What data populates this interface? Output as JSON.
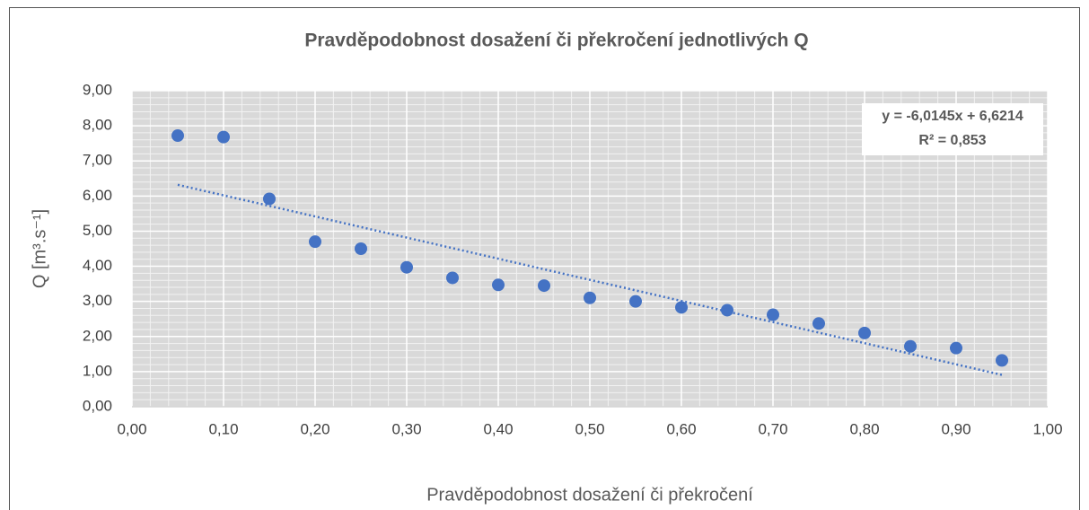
{
  "chart_data": {
    "type": "scatter",
    "title": "Pravděpodobnost dosažení či překročení jednotlivých Q",
    "x_label": "Pravděpodobnost dosažení či překročení",
    "y_label": "Q [m³.s⁻¹]",
    "x": [
      0.05,
      0.1,
      0.15,
      0.2,
      0.25,
      0.3,
      0.35,
      0.4,
      0.45,
      0.5,
      0.55,
      0.6,
      0.65,
      0.7,
      0.75,
      0.8,
      0.85,
      0.9,
      0.95
    ],
    "series": [
      {
        "color": "#4472c4",
        "values": [
          7.72,
          7.68,
          5.92,
          4.7,
          4.5,
          3.97,
          3.67,
          3.47,
          3.45,
          3.1,
          3.0,
          2.83,
          2.75,
          2.62,
          2.37,
          2.1,
          1.72,
          1.67,
          1.32
        ]
      }
    ],
    "trendline": {
      "slope": -6.0145,
      "intercept": 6.6214,
      "equation": "y = -6,0145x + 6,6214",
      "r_squared": "R² = 0,853"
    },
    "xlim": [
      0,
      1
    ],
    "xticks": [
      {
        "value": 0,
        "label": "0,00"
      },
      {
        "value": 0.1,
        "label": "0,10"
      },
      {
        "value": 0.2,
        "label": "0,20"
      },
      {
        "value": 0.3,
        "label": "0,30"
      },
      {
        "value": 0.4,
        "label": "0,40"
      },
      {
        "value": 0.5,
        "label": "0,50"
      },
      {
        "value": 0.6,
        "label": "0,60"
      },
      {
        "value": 0.7,
        "label": "0,70"
      },
      {
        "value": 0.8,
        "label": "0,80"
      },
      {
        "value": 0.9,
        "label": "0,90"
      },
      {
        "value": 1,
        "label": "1,00"
      }
    ],
    "ylim": [
      0,
      9
    ],
    "yticks": [
      {
        "value": 0,
        "label": "0,00"
      },
      {
        "value": 1,
        "label": "1,00"
      },
      {
        "value": 2,
        "label": "2,00"
      },
      {
        "value": 3,
        "label": "3,00"
      },
      {
        "value": 4,
        "label": "4,00"
      },
      {
        "value": 5,
        "label": "5,00"
      },
      {
        "value": 6,
        "label": "6,00"
      },
      {
        "value": 7,
        "label": "7,00"
      },
      {
        "value": 8,
        "label": "8,00"
      },
      {
        "value": 9,
        "label": "9,00"
      }
    ],
    "grid": true,
    "minor_grid": true
  }
}
